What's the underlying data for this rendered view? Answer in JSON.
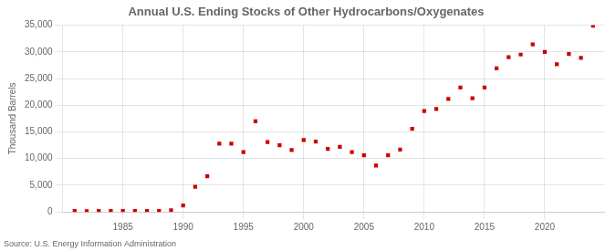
{
  "chart_data": {
    "type": "scatter",
    "title": "Annual U.S. Ending Stocks of Other Hydrocarbons/Oxygenates",
    "ylabel": "Thousand Barrels",
    "source": "Source: U.S. Energy Information Administration",
    "color": "#cc0000",
    "marker": "square",
    "x": [
      1981,
      1982,
      1983,
      1984,
      1985,
      1986,
      1987,
      1988,
      1989,
      1990,
      1991,
      1992,
      1993,
      1994,
      1995,
      1996,
      1997,
      1998,
      1999,
      2000,
      2001,
      2002,
      2003,
      2004,
      2005,
      2006,
      2007,
      2008,
      2009,
      2010,
      2011,
      2012,
      2013,
      2014,
      2015,
      2016,
      2017,
      2018,
      2019,
      2020,
      2021,
      2022,
      2023,
      2024
    ],
    "values": [
      200,
      150,
      200,
      200,
      200,
      200,
      200,
      200,
      300,
      1200,
      4700,
      6700,
      12800,
      12800,
      11200,
      17000,
      13100,
      12500,
      11600,
      13500,
      13200,
      11800,
      12200,
      11200,
      10600,
      8700,
      10600,
      11700,
      15600,
      18900,
      19300,
      21200,
      23300,
      21300,
      23300,
      26900,
      29000,
      29500,
      31400,
      30000,
      27700,
      29600,
      28900,
      34900
    ],
    "xlim": [
      1980,
      2025
    ],
    "xticks": [
      1985,
      1990,
      1995,
      2000,
      2005,
      2010,
      2015,
      2020
    ],
    "ylim": [
      0,
      35000
    ],
    "yticks": [
      0,
      {
        "value": 5000,
        "label": "5,000"
      },
      {
        "value": 10000,
        "label": "10,000"
      },
      {
        "value": 15000,
        "label": "15,000"
      },
      {
        "value": 20000,
        "label": "20,000"
      },
      {
        "value": 25000,
        "label": "25,000"
      },
      {
        "value": 30000,
        "label": "30,000"
      },
      {
        "value": 35000,
        "label": "35,000"
      }
    ],
    "grid": true
  }
}
